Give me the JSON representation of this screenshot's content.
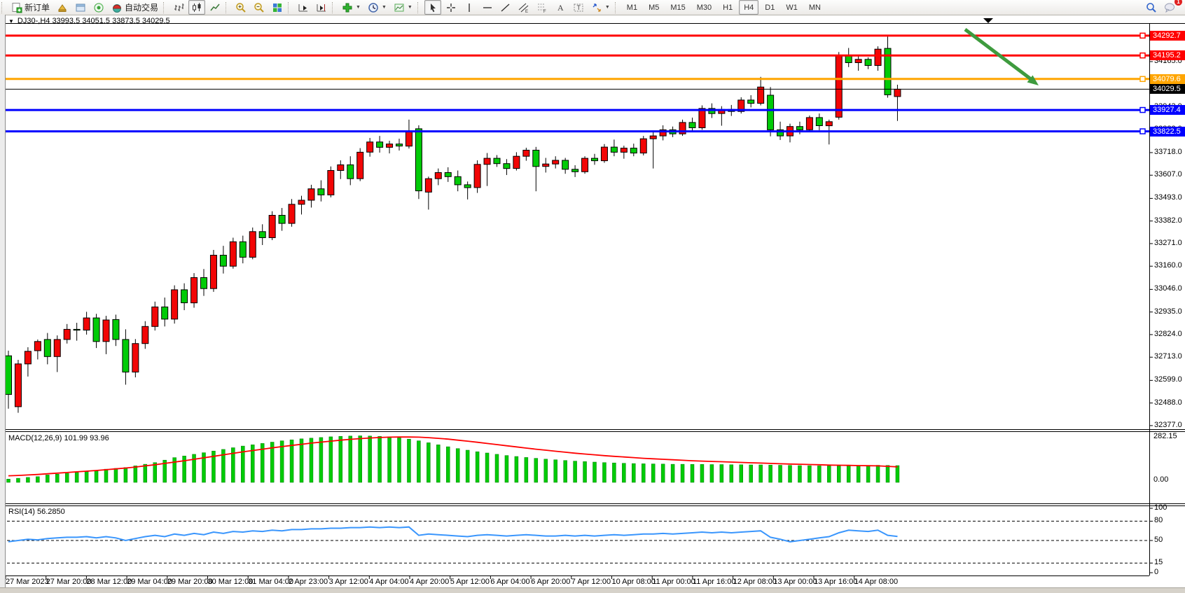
{
  "toolbar": {
    "new_order_label": "新订单",
    "auto_trading_label": "自动交易",
    "timeframes": [
      "M1",
      "M5",
      "M15",
      "M30",
      "H1",
      "H4",
      "D1",
      "W1",
      "MN"
    ],
    "active_timeframe": "H4",
    "notification_count": "1"
  },
  "chart": {
    "symbol": "DJ30-",
    "period": "H4",
    "info_line": "DJ30-,H4  33993.5 34051.5 33873.5 34029.5"
  },
  "indicators": {
    "macd_label": "MACD(12,26,9) 101.99 93.96",
    "macd_scale_max": "282.15",
    "macd_scale_min": "0.00",
    "rsi_label": "RSI(14) 56.2850"
  },
  "chart_data": {
    "type": "candlestick",
    "symbol": "DJ30-",
    "timeframe": "H4",
    "ohlc_current": {
      "open": 33993.5,
      "high": 34051.5,
      "low": 33873.5,
      "close": 34029.5
    },
    "y_axis": {
      "min": 32377.0,
      "max": 34276.0,
      "ticks": [
        34276.0,
        34165.0,
        34054.0,
        33943.0,
        33832.0,
        33718.0,
        33607.0,
        33493.0,
        33382.0,
        33271.0,
        33160.0,
        33046.0,
        32935.0,
        32824.0,
        32713.0,
        32599.0,
        32488.0,
        32377.0
      ]
    },
    "x_labels": [
      "27 Mar 2023",
      "27 Mar 20:00",
      "28 Mar 12:00",
      "29 Mar 04:00",
      "29 Mar 20:00",
      "30 Mar 12:00",
      "31 Mar 04:00",
      "2 Apr 23:00",
      "3 Apr 12:00",
      "4 Apr 04:00",
      "4 Apr 20:00",
      "5 Apr 12:00",
      "6 Apr 04:00",
      "6 Apr 20:00",
      "7 Apr 12:00",
      "10 Apr 08:00",
      "11 Apr 00:00",
      "11 Apr 16:00",
      "12 Apr 08:00",
      "13 Apr 00:00",
      "13 Apr 16:00",
      "14 Apr 08:00"
    ],
    "horizontal_lines": [
      {
        "price": 34292.7,
        "color": "#ff0000",
        "label": "34292.7",
        "current": false
      },
      {
        "price": 34195.2,
        "color": "#ff0000",
        "label": "34195.2",
        "current": false
      },
      {
        "price": 34079.6,
        "color": "#ffa500",
        "label": "34079.6",
        "current": false
      },
      {
        "price": 34029.5,
        "color": "#000000",
        "label": "34029.5",
        "current": true
      },
      {
        "price": 33927.4,
        "color": "#0000ff",
        "label": "33927.4",
        "current": false
      },
      {
        "price": 33822.5,
        "color": "#0000ff",
        "label": "33822.5",
        "current": false
      }
    ],
    "candles": [
      [
        32720,
        32745,
        32460,
        32530
      ],
      [
        32470,
        32700,
        32440,
        32680
      ],
      [
        32680,
        32762,
        32618,
        32742
      ],
      [
        32745,
        32800,
        32702,
        32790
      ],
      [
        32800,
        32832,
        32678,
        32716
      ],
      [
        32716,
        32820,
        32640,
        32800
      ],
      [
        32800,
        32876,
        32780,
        32850
      ],
      [
        32850,
        32882,
        32794,
        32846
      ],
      [
        32846,
        32936,
        32824,
        32906
      ],
      [
        32906,
        32926,
        32758,
        32790
      ],
      [
        32790,
        32916,
        32728,
        32896
      ],
      [
        32898,
        32922,
        32768,
        32800
      ],
      [
        32800,
        32850,
        32578,
        32640
      ],
      [
        32640,
        32802,
        32614,
        32780
      ],
      [
        32780,
        32890,
        32754,
        32864
      ],
      [
        32864,
        32986,
        32844,
        32960
      ],
      [
        32960,
        33006,
        32864,
        32900
      ],
      [
        32900,
        33066,
        32878,
        33044
      ],
      [
        33044,
        33076,
        32944,
        32980
      ],
      [
        32980,
        33126,
        32956,
        33104
      ],
      [
        33104,
        33146,
        33014,
        33050
      ],
      [
        33050,
        33240,
        33034,
        33214
      ],
      [
        33214,
        33260,
        33124,
        33160
      ],
      [
        33160,
        33300,
        33148,
        33280
      ],
      [
        33280,
        33310,
        33174,
        33204
      ],
      [
        33204,
        33350,
        33194,
        33330
      ],
      [
        33330,
        33366,
        33264,
        33300
      ],
      [
        33300,
        33430,
        33288,
        33410
      ],
      [
        33410,
        33446,
        33334,
        33370
      ],
      [
        33370,
        33490,
        33354,
        33464
      ],
      [
        33464,
        33506,
        33414,
        33484
      ],
      [
        33484,
        33560,
        33448,
        33540
      ],
      [
        33540,
        33582,
        33478,
        33510
      ],
      [
        33510,
        33650,
        33498,
        33630
      ],
      [
        33630,
        33680,
        33588,
        33658
      ],
      [
        33658,
        33700,
        33558,
        33590
      ],
      [
        33590,
        33740,
        33578,
        33720
      ],
      [
        33720,
        33790,
        33698,
        33770
      ],
      [
        33770,
        33800,
        33718,
        33744
      ],
      [
        33744,
        33776,
        33714,
        33760
      ],
      [
        33760,
        33786,
        33728,
        33750
      ],
      [
        33750,
        33880,
        33738,
        33820
      ],
      [
        33835,
        33852,
        33490,
        33530
      ],
      [
        33524,
        33600,
        33438,
        33590
      ],
      [
        33590,
        33640,
        33558,
        33620
      ],
      [
        33620,
        33646,
        33574,
        33600
      ],
      [
        33600,
        33630,
        33528,
        33560
      ],
      [
        33560,
        33576,
        33488,
        33546
      ],
      [
        33546,
        33680,
        33520,
        33660
      ],
      [
        33660,
        33716,
        33554,
        33690
      ],
      [
        33690,
        33706,
        33648,
        33664
      ],
      [
        33664,
        33686,
        33608,
        33640
      ],
      [
        33640,
        33720,
        33630,
        33700
      ],
      [
        33700,
        33742,
        33678,
        33730
      ],
      [
        33730,
        33746,
        33528,
        33650
      ],
      [
        33650,
        33692,
        33620,
        33662
      ],
      [
        33662,
        33700,
        33640,
        33680
      ],
      [
        33680,
        33692,
        33614,
        33636
      ],
      [
        33636,
        33656,
        33598,
        33624
      ],
      [
        33624,
        33700,
        33614,
        33690
      ],
      [
        33690,
        33712,
        33658,
        33678
      ],
      [
        33678,
        33760,
        33668,
        33745
      ],
      [
        33745,
        33782,
        33700,
        33720
      ],
      [
        33720,
        33752,
        33688,
        33740
      ],
      [
        33740,
        33762,
        33700,
        33716
      ],
      [
        33716,
        33800,
        33704,
        33786
      ],
      [
        33786,
        33820,
        33640,
        33800
      ],
      [
        33800,
        33852,
        33778,
        33830
      ],
      [
        33830,
        33846,
        33794,
        33810
      ],
      [
        33810,
        33880,
        33800,
        33866
      ],
      [
        33866,
        33890,
        33820,
        33840
      ],
      [
        33840,
        33950,
        33830,
        33935
      ],
      [
        33935,
        33960,
        33888,
        33910
      ],
      [
        33910,
        33946,
        33850,
        33930
      ],
      [
        33930,
        33952,
        33898,
        33920
      ],
      [
        33920,
        33990,
        33910,
        33976
      ],
      [
        33976,
        34000,
        33940,
        33960
      ],
      [
        33960,
        34090,
        33950,
        34040
      ],
      [
        34000,
        34040,
        33798,
        33830
      ],
      [
        33830,
        33870,
        33780,
        33800
      ],
      [
        33800,
        33860,
        33768,
        33846
      ],
      [
        33846,
        33870,
        33808,
        33830
      ],
      [
        33830,
        33900,
        33820,
        33890
      ],
      [
        33890,
        33910,
        33828,
        33850
      ],
      [
        33850,
        33880,
        33758,
        33870
      ],
      [
        33892,
        34212,
        33880,
        34195
      ],
      [
        34195,
        34232,
        34138,
        34160
      ],
      [
        34160,
        34192,
        34120,
        34176
      ],
      [
        34176,
        34186,
        34128,
        34146
      ],
      [
        34146,
        34240,
        34120,
        34226
      ],
      [
        34230,
        34290,
        33988,
        34002
      ],
      [
        33993.5,
        34051.5,
        33873.5,
        34029.5
      ]
    ],
    "macd": {
      "label": "MACD(12,26,9)",
      "main_value": 101.99,
      "signal_value": 93.96,
      "scale_max": 282.15,
      "scale_min": 0.0,
      "histogram": [
        20,
        25,
        30,
        35,
        45,
        50,
        55,
        60,
        65,
        70,
        80,
        85,
        90,
        100,
        110,
        120,
        135,
        150,
        160,
        170,
        180,
        190,
        200,
        210,
        220,
        228,
        236,
        244,
        252,
        258,
        264,
        268,
        272,
        276,
        279,
        281,
        282,
        281,
        279,
        276,
        270,
        262,
        252,
        240,
        228,
        216,
        205,
        195,
        186,
        178,
        170,
        163,
        157,
        151,
        146,
        141,
        137,
        133,
        129,
        126,
        123,
        120,
        118,
        116,
        114,
        113,
        112,
        111,
        110,
        110,
        109,
        109,
        108,
        108,
        107,
        107,
        106,
        106,
        105,
        104,
        103,
        102,
        101,
        100,
        100,
        100,
        101,
        102,
        103,
        104,
        103,
        102
      ],
      "signal": [
        40,
        42,
        45,
        48,
        52,
        56,
        60,
        64,
        68,
        72,
        77,
        82,
        87,
        93,
        100,
        107,
        115,
        123,
        131,
        140,
        149,
        158,
        167,
        176,
        185,
        193,
        201,
        209,
        217,
        224,
        231,
        238,
        244,
        250,
        256,
        261,
        265,
        269,
        272,
        274,
        275,
        275,
        274,
        271,
        267,
        262,
        256,
        250,
        243,
        236,
        229,
        222,
        215,
        208,
        201,
        195,
        189,
        183,
        177,
        172,
        167,
        162,
        158,
        154,
        150,
        146,
        143,
        140,
        137,
        134,
        131,
        129,
        127,
        125,
        123,
        121,
        119,
        117,
        115,
        113,
        111,
        110,
        108,
        107,
        105,
        104,
        103,
        102,
        101,
        100,
        97,
        94
      ]
    },
    "rsi": {
      "label": "RSI(14)",
      "value": 56.285,
      "levels": [
        80,
        50,
        15
      ],
      "axis_ticks": [
        100,
        80,
        50,
        15,
        0
      ],
      "series": [
        48,
        50,
        52,
        51,
        53,
        54,
        55,
        55,
        56,
        54,
        56,
        54,
        50,
        53,
        56,
        58,
        56,
        60,
        58,
        61,
        59,
        63,
        61,
        64,
        63,
        65,
        64,
        66,
        65,
        67,
        67,
        68,
        68,
        69,
        69,
        70,
        70,
        71,
        70,
        71,
        70,
        71,
        58,
        60,
        59,
        58,
        57,
        56,
        58,
        59,
        58,
        57,
        58,
        59,
        58,
        57,
        57,
        58,
        57,
        58,
        57,
        58,
        59,
        58,
        59,
        60,
        60,
        61,
        60,
        61,
        62,
        63,
        62,
        63,
        62,
        63,
        64,
        65,
        55,
        52,
        48,
        50,
        52,
        54,
        56,
        62,
        66,
        65,
        64,
        66,
        58,
        56.3
      ]
    },
    "annotation_arrow": {
      "from": [
        1378,
        42
      ],
      "to": [
        1477,
        117
      ],
      "color": "#3e9b3e"
    },
    "colors": {
      "up": "#f20505",
      "down": "#00cb07",
      "macd_hist": "#00cb07",
      "macd_signal": "#ff0000",
      "rsi_line": "#3a96fd"
    }
  }
}
